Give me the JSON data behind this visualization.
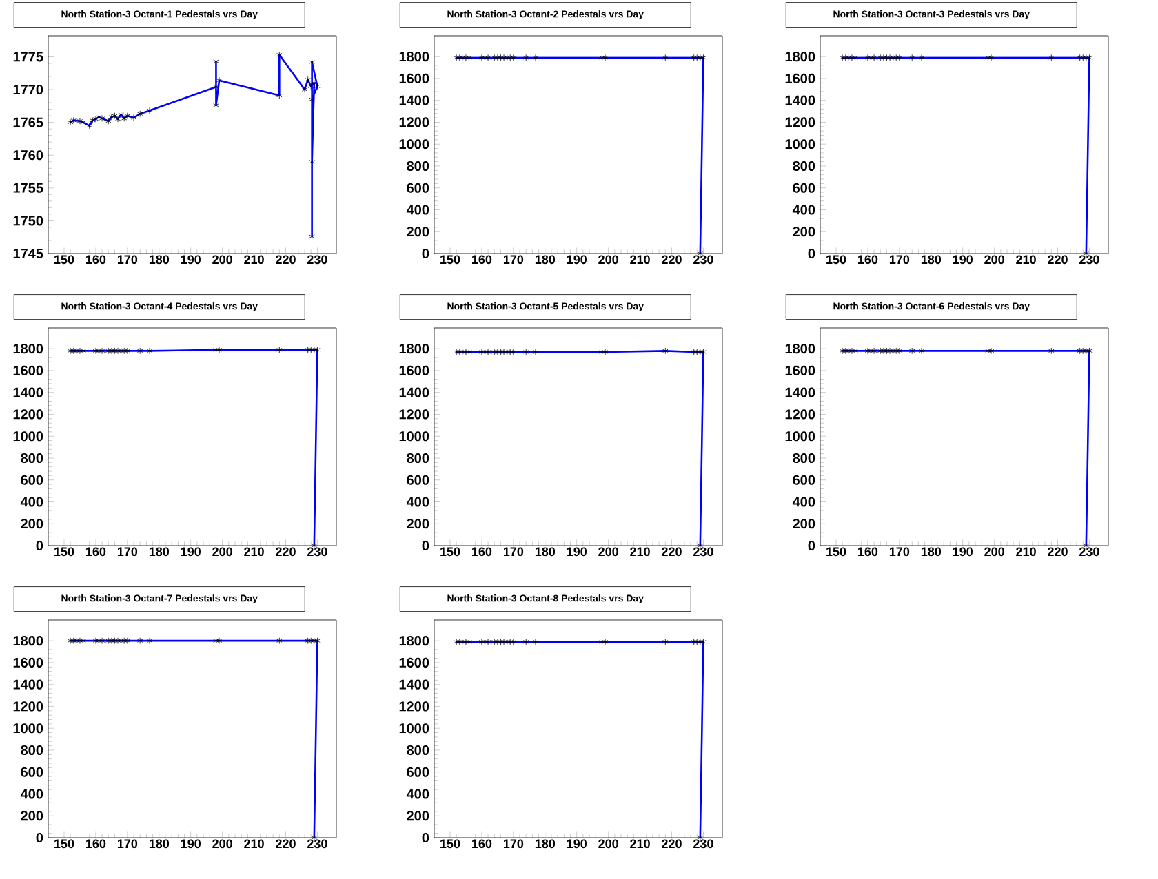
{
  "chart_data": [
    {
      "type": "line",
      "title": "North Station-3 Octant-1 Pedestals vrs Day",
      "marker": "cross",
      "line_style": "solid",
      "xlim": [
        145,
        236
      ],
      "ylim": [
        1745,
        1778.2
      ],
      "xticks": [
        150,
        160,
        170,
        180,
        190,
        200,
        210,
        220,
        230
      ],
      "yticks": [
        1745,
        1750,
        1755,
        1760,
        1765,
        1770,
        1775
      ],
      "x": [
        152,
        153,
        155,
        156,
        158,
        159,
        160,
        161,
        162,
        164,
        165,
        166,
        167,
        168,
        169,
        170,
        172,
        174,
        177,
        198,
        198,
        198,
        199,
        218,
        218,
        226,
        227,
        228,
        229,
        228.3,
        228.3,
        228.3,
        230,
        228.3
      ],
      "series": [
        {
          "color": "#0000ff",
          "values": [
            1765,
            1765.3,
            1765.2,
            1765,
            1764.5,
            1765.3,
            1765.5,
            1765.8,
            1765.6,
            1765.2,
            1765.8,
            1766,
            1765.5,
            1766.2,
            1765.6,
            1766,
            1765.7,
            1766.3,
            1766.8,
            1770.4,
            1774.3,
            1767.6,
            1771.4,
            1769.1,
            1775.3,
            1770,
            1771.5,
            1770.5,
            1771,
            1759,
            1747.6,
            1774.2,
            1770.5,
            1768.5
          ]
        }
      ]
    },
    {
      "type": "line",
      "title": "North Station-3 Octant-2 Pedestals vrs Day",
      "marker": "cross",
      "line_style": "solid",
      "xlim": [
        145,
        236
      ],
      "ylim": [
        0,
        1990
      ],
      "xticks": [
        150,
        160,
        170,
        180,
        190,
        200,
        210,
        220,
        230
      ],
      "yticks": [
        0,
        200,
        400,
        600,
        800,
        1000,
        1200,
        1400,
        1600,
        1800
      ],
      "x": [
        152,
        153,
        154,
        155,
        156,
        160,
        161,
        162,
        164,
        165,
        166,
        167,
        168,
        169,
        170,
        174,
        177,
        198,
        199,
        218,
        227,
        228,
        229,
        230,
        229
      ],
      "series": [
        {
          "color": "#0000ff",
          "values": [
            1790,
            1790,
            1790,
            1790,
            1790,
            1790,
            1790,
            1790,
            1790,
            1790,
            1790,
            1790,
            1790,
            1790,
            1790,
            1790,
            1790,
            1790,
            1790,
            1790,
            1790,
            1790,
            1790,
            1790,
            0
          ]
        }
      ]
    },
    {
      "type": "line",
      "title": "North Station-3 Octant-3 Pedestals vrs Day",
      "marker": "cross",
      "line_style": "solid",
      "xlim": [
        145,
        236
      ],
      "ylim": [
        0,
        1990
      ],
      "xticks": [
        150,
        160,
        170,
        180,
        190,
        200,
        210,
        220,
        230
      ],
      "yticks": [
        0,
        200,
        400,
        600,
        800,
        1000,
        1200,
        1400,
        1600,
        1800
      ],
      "x": [
        152,
        153,
        154,
        155,
        156,
        160,
        161,
        162,
        164,
        165,
        166,
        167,
        168,
        169,
        170,
        174,
        177,
        198,
        199,
        218,
        227,
        228,
        229,
        230,
        229
      ],
      "series": [
        {
          "color": "#0000ff",
          "values": [
            1790,
            1790,
            1790,
            1790,
            1790,
            1790,
            1790,
            1790,
            1790,
            1790,
            1790,
            1790,
            1790,
            1790,
            1790,
            1790,
            1790,
            1790,
            1790,
            1790,
            1790,
            1790,
            1790,
            1790,
            0
          ]
        }
      ]
    },
    {
      "type": "line",
      "title": "North Station-3 Octant-4 Pedestals vrs Day",
      "marker": "cross",
      "line_style": "solid",
      "xlim": [
        145,
        236
      ],
      "ylim": [
        0,
        1990
      ],
      "xticks": [
        150,
        160,
        170,
        180,
        190,
        200,
        210,
        220,
        230
      ],
      "yticks": [
        0,
        200,
        400,
        600,
        800,
        1000,
        1200,
        1400,
        1600,
        1800
      ],
      "x": [
        152,
        153,
        154,
        155,
        156,
        160,
        161,
        162,
        164,
        165,
        166,
        167,
        168,
        169,
        170,
        174,
        177,
        198,
        199,
        218,
        227,
        228,
        229,
        230,
        229
      ],
      "series": [
        {
          "color": "#0000ff",
          "values": [
            1780,
            1780,
            1780,
            1780,
            1780,
            1780,
            1780,
            1780,
            1780,
            1780,
            1780,
            1780,
            1780,
            1780,
            1780,
            1780,
            1780,
            1790,
            1790,
            1790,
            1790,
            1790,
            1790,
            1790,
            0
          ]
        }
      ]
    },
    {
      "type": "line",
      "title": "North Station-3 Octant-5 Pedestals vrs Day",
      "marker": "cross",
      "line_style": "solid",
      "xlim": [
        145,
        236
      ],
      "ylim": [
        0,
        1990
      ],
      "xticks": [
        150,
        160,
        170,
        180,
        190,
        200,
        210,
        220,
        230
      ],
      "yticks": [
        0,
        200,
        400,
        600,
        800,
        1000,
        1200,
        1400,
        1600,
        1800
      ],
      "x": [
        152,
        153,
        154,
        155,
        156,
        160,
        161,
        162,
        164,
        165,
        166,
        167,
        168,
        169,
        170,
        174,
        177,
        198,
        199,
        218,
        227,
        228,
        229,
        230,
        229
      ],
      "series": [
        {
          "color": "#0000ff",
          "values": [
            1770,
            1770,
            1770,
            1770,
            1770,
            1770,
            1770,
            1770,
            1770,
            1770,
            1770,
            1770,
            1770,
            1770,
            1770,
            1770,
            1770,
            1770,
            1770,
            1780,
            1770,
            1770,
            1770,
            1770,
            0
          ]
        }
      ]
    },
    {
      "type": "line",
      "title": "North Station-3 Octant-6 Pedestals vrs Day",
      "marker": "cross",
      "line_style": "solid",
      "xlim": [
        145,
        236
      ],
      "ylim": [
        0,
        1990
      ],
      "xticks": [
        150,
        160,
        170,
        180,
        190,
        200,
        210,
        220,
        230
      ],
      "yticks": [
        0,
        200,
        400,
        600,
        800,
        1000,
        1200,
        1400,
        1600,
        1800
      ],
      "x": [
        152,
        153,
        154,
        155,
        156,
        160,
        161,
        162,
        164,
        165,
        166,
        167,
        168,
        169,
        170,
        174,
        177,
        198,
        199,
        218,
        227,
        228,
        229,
        230,
        229
      ],
      "series": [
        {
          "color": "#0000ff",
          "values": [
            1780,
            1780,
            1780,
            1780,
            1780,
            1780,
            1780,
            1780,
            1780,
            1780,
            1780,
            1780,
            1780,
            1780,
            1780,
            1780,
            1780,
            1780,
            1780,
            1780,
            1780,
            1780,
            1780,
            1780,
            0
          ]
        }
      ]
    },
    {
      "type": "line",
      "title": "North Station-3 Octant-7 Pedestals vrs Day",
      "marker": "cross",
      "line_style": "solid",
      "xlim": [
        145,
        236
      ],
      "ylim": [
        0,
        1990
      ],
      "xticks": [
        150,
        160,
        170,
        180,
        190,
        200,
        210,
        220,
        230
      ],
      "yticks": [
        0,
        200,
        400,
        600,
        800,
        1000,
        1200,
        1400,
        1600,
        1800
      ],
      "x": [
        152,
        153,
        154,
        155,
        156,
        160,
        161,
        162,
        164,
        165,
        166,
        167,
        168,
        169,
        170,
        174,
        177,
        198,
        199,
        218,
        227,
        228,
        229,
        230,
        229
      ],
      "series": [
        {
          "color": "#0000ff",
          "values": [
            1800,
            1800,
            1800,
            1800,
            1800,
            1800,
            1800,
            1800,
            1800,
            1800,
            1800,
            1800,
            1800,
            1800,
            1800,
            1800,
            1800,
            1800,
            1800,
            1800,
            1800,
            1800,
            1800,
            1800,
            0
          ]
        }
      ]
    },
    {
      "type": "line",
      "title": "North Station-3 Octant-8 Pedestals vrs Day",
      "marker": "cross",
      "line_style": "solid",
      "xlim": [
        145,
        236
      ],
      "ylim": [
        0,
        1990
      ],
      "xticks": [
        150,
        160,
        170,
        180,
        190,
        200,
        210,
        220,
        230
      ],
      "yticks": [
        0,
        200,
        400,
        600,
        800,
        1000,
        1200,
        1400,
        1600,
        1800
      ],
      "x": [
        152,
        153,
        154,
        155,
        156,
        160,
        161,
        162,
        164,
        165,
        166,
        167,
        168,
        169,
        170,
        174,
        177,
        198,
        199,
        218,
        227,
        228,
        229,
        230,
        229
      ],
      "series": [
        {
          "color": "#0000ff",
          "values": [
            1790,
            1790,
            1790,
            1790,
            1790,
            1790,
            1790,
            1790,
            1790,
            1790,
            1790,
            1790,
            1790,
            1790,
            1790,
            1790,
            1790,
            1790,
            1790,
            1790,
            1790,
            1790,
            1790,
            1790,
            0
          ]
        }
      ]
    }
  ]
}
